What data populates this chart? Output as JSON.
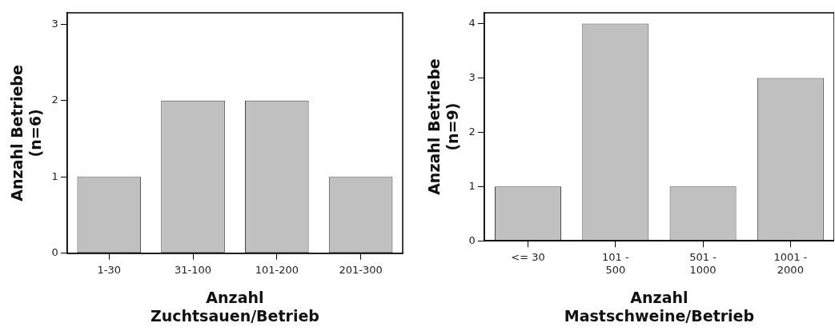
{
  "chart_data": [
    {
      "type": "bar",
      "categories": [
        "1-30",
        "31-100",
        "101-200",
        "201-300"
      ],
      "values": [
        1,
        2,
        2,
        1
      ],
      "color": "#c0c0c0",
      "xlabel": "Anzahl\nZuchtsauen/Betrieb",
      "ylabel": "Anzahl Betriebe\n(n=6)",
      "ylim": [
        0,
        3.15
      ],
      "yticks": [
        0,
        1,
        2,
        3
      ],
      "grid": false,
      "legend": false
    },
    {
      "type": "bar",
      "categories": [
        "<= 30",
        "101 -\n500",
        "501 -\n1000",
        "1001 -\n2000"
      ],
      "values": [
        1,
        4,
        1,
        3
      ],
      "color": "#c0c0c0",
      "xlabel": "Anzahl\nMastschweine/Betrieb",
      "ylabel": "Anzahl Betriebe\n(n=9)",
      "ylim": [
        0,
        4.2
      ],
      "yticks": [
        0,
        1,
        2,
        3,
        4
      ],
      "grid": false,
      "legend": false
    }
  ]
}
